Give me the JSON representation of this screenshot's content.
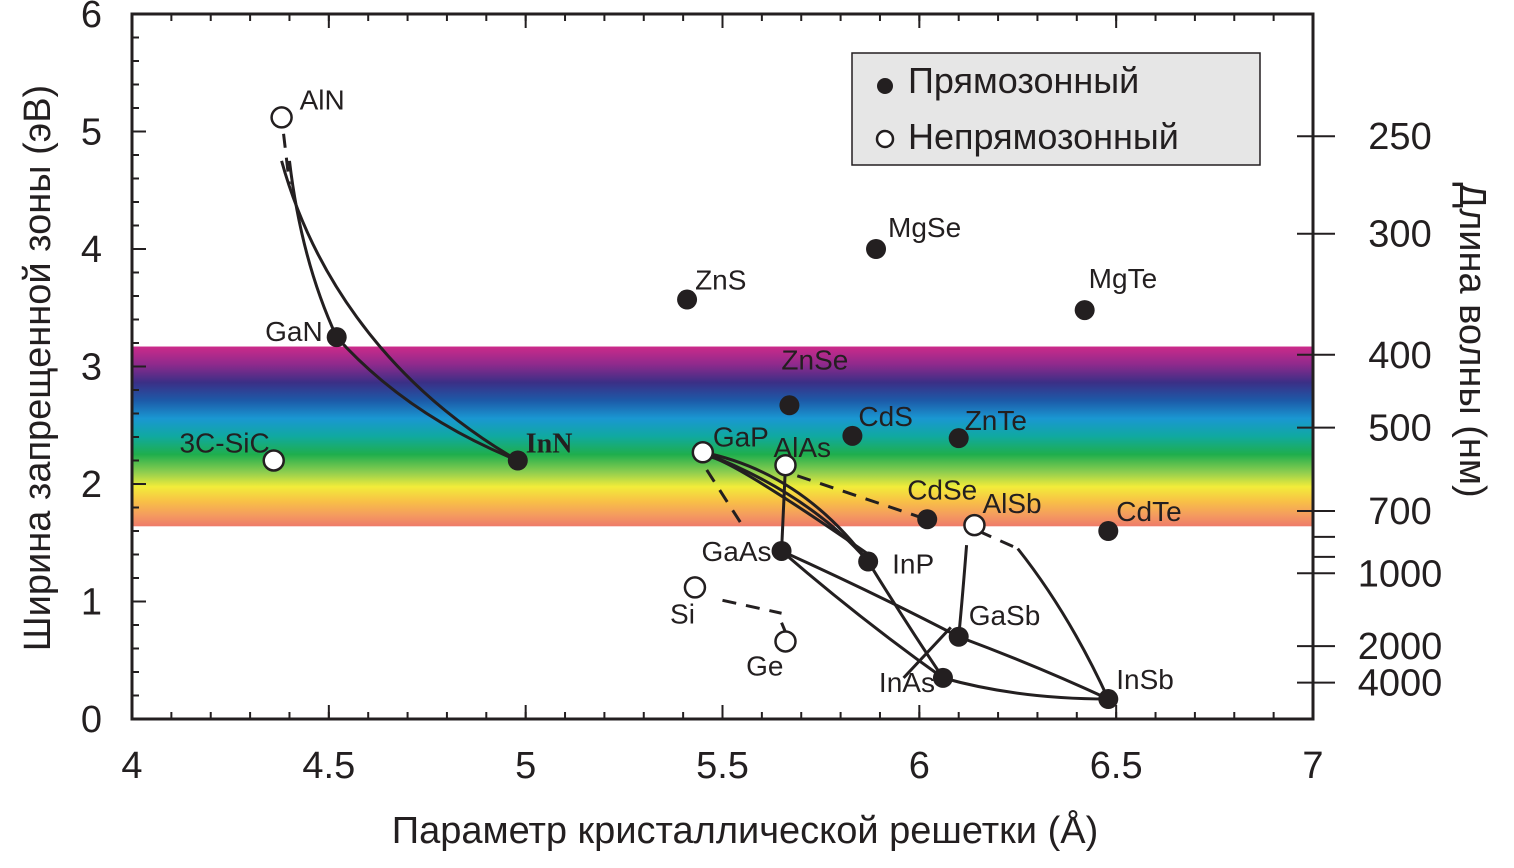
{
  "chart_data": {
    "type": "scatter",
    "xlabel": "Параметр кристаллической решетки (Å)",
    "ylabel": "Ширина запрещенной зоны (эВ)",
    "y2label": "Длина волны (нм)",
    "xlim": [
      4,
      7
    ],
    "ylim": [
      0,
      6
    ],
    "xticks": [
      "4",
      "4.5",
      "5",
      "5.5",
      "6",
      "6.5",
      "7"
    ],
    "yticks": [
      "0",
      "1",
      "2",
      "3",
      "4",
      "5",
      "6"
    ],
    "y2ticks": [
      {
        "label": "250",
        "energy": 4.96
      },
      {
        "label": "300",
        "energy": 4.13
      },
      {
        "label": "400",
        "energy": 3.1
      },
      {
        "label": "500",
        "energy": 2.48
      },
      {
        "label": "700",
        "energy": 1.77
      },
      {
        "label": "1000",
        "energy": 1.24
      },
      {
        "label": "2000",
        "energy": 0.62
      },
      {
        "label": "4000",
        "energy": 0.31
      }
    ],
    "y2_minor_energies": [
      1.55,
      1.38
    ],
    "visible_band": {
      "ymin": 1.64,
      "ymax": 3.17
    },
    "legend": {
      "position": "top-right",
      "direct": "Прямозонный",
      "indirect": "Непрямозонный"
    },
    "points": [
      {
        "name": "AlN",
        "x": 4.38,
        "y": 5.12,
        "type": "indirect"
      },
      {
        "name": "GaN",
        "x": 4.52,
        "y": 3.25,
        "type": "direct"
      },
      {
        "name": "InN",
        "x": 4.98,
        "y": 2.2,
        "type": "direct"
      },
      {
        "name": "3C-SiC",
        "x": 4.36,
        "y": 2.2,
        "type": "indirect"
      },
      {
        "name": "ZnS",
        "x": 5.41,
        "y": 3.57,
        "type": "direct"
      },
      {
        "name": "MgSe",
        "x": 5.89,
        "y": 4.0,
        "type": "direct"
      },
      {
        "name": "MgTe",
        "x": 6.42,
        "y": 3.48,
        "type": "direct"
      },
      {
        "name": "ZnSe",
        "x": 5.67,
        "y": 2.67,
        "type": "direct"
      },
      {
        "name": "CdS",
        "x": 5.83,
        "y": 2.41,
        "type": "direct"
      },
      {
        "name": "ZnTe",
        "x": 6.1,
        "y": 2.39,
        "type": "direct"
      },
      {
        "name": "GaP",
        "x": 5.45,
        "y": 2.27,
        "type": "indirect"
      },
      {
        "name": "AlAs",
        "x": 5.66,
        "y": 2.16,
        "type": "indirect"
      },
      {
        "name": "CdSe",
        "x": 6.02,
        "y": 1.7,
        "type": "direct"
      },
      {
        "name": "AlSb",
        "x": 6.14,
        "y": 1.65,
        "type": "indirect"
      },
      {
        "name": "CdTe",
        "x": 6.48,
        "y": 1.6,
        "type": "direct"
      },
      {
        "name": "GaAs",
        "x": 5.65,
        "y": 1.43,
        "type": "direct"
      },
      {
        "name": "InP",
        "x": 5.87,
        "y": 1.34,
        "type": "direct"
      },
      {
        "name": "Si",
        "x": 5.43,
        "y": 1.12,
        "type": "indirect"
      },
      {
        "name": "Ge",
        "x": 5.66,
        "y": 0.66,
        "type": "indirect"
      },
      {
        "name": "GaSb",
        "x": 6.1,
        "y": 0.7,
        "type": "direct"
      },
      {
        "name": "InAs",
        "x": 6.06,
        "y": 0.35,
        "type": "direct"
      },
      {
        "name": "InSb",
        "x": 6.48,
        "y": 0.17,
        "type": "direct"
      }
    ]
  }
}
